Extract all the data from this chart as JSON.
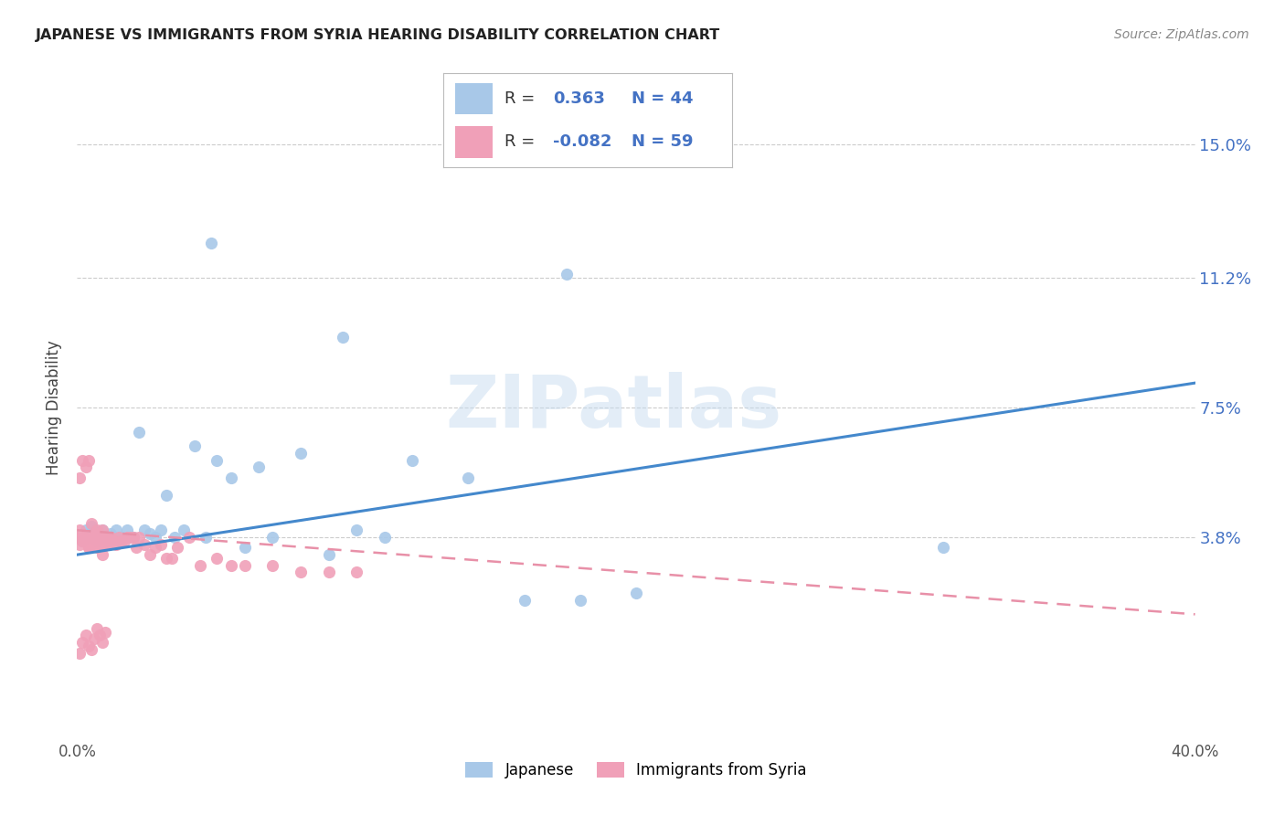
{
  "title": "JAPANESE VS IMMIGRANTS FROM SYRIA HEARING DISABILITY CORRELATION CHART",
  "source": "Source: ZipAtlas.com",
  "ylabel": "Hearing Disability",
  "yticks": [
    "15.0%",
    "11.2%",
    "7.5%",
    "3.8%"
  ],
  "ytick_vals": [
    0.15,
    0.112,
    0.075,
    0.038
  ],
  "xlim": [
    0.0,
    0.4
  ],
  "ylim": [
    -0.018,
    0.168
  ],
  "blue_color": "#A8C8E8",
  "pink_color": "#F0A0B8",
  "blue_line_color": "#4488CC",
  "pink_line_color": "#E890A8",
  "legend_label_japanese": "Japanese",
  "legend_label_syria": "Immigrants from Syria",
  "R_japanese": 0.363,
  "N_japanese": 44,
  "R_syria": -0.082,
  "N_syria": 59,
  "blue_line_x0": 0.0,
  "blue_line_y0": 0.033,
  "blue_line_x1": 0.4,
  "blue_line_y1": 0.082,
  "pink_line_x0": 0.0,
  "pink_line_y0": 0.04,
  "pink_line_x1": 0.4,
  "pink_line_y1": 0.016,
  "watermark_text": "ZIPatlas",
  "background_color": "#FFFFFF",
  "grid_color": "#CCCCCC",
  "xtick_positions": [
    0.0,
    0.4
  ],
  "xtick_labels": [
    "0.0%",
    "40.0%"
  ]
}
